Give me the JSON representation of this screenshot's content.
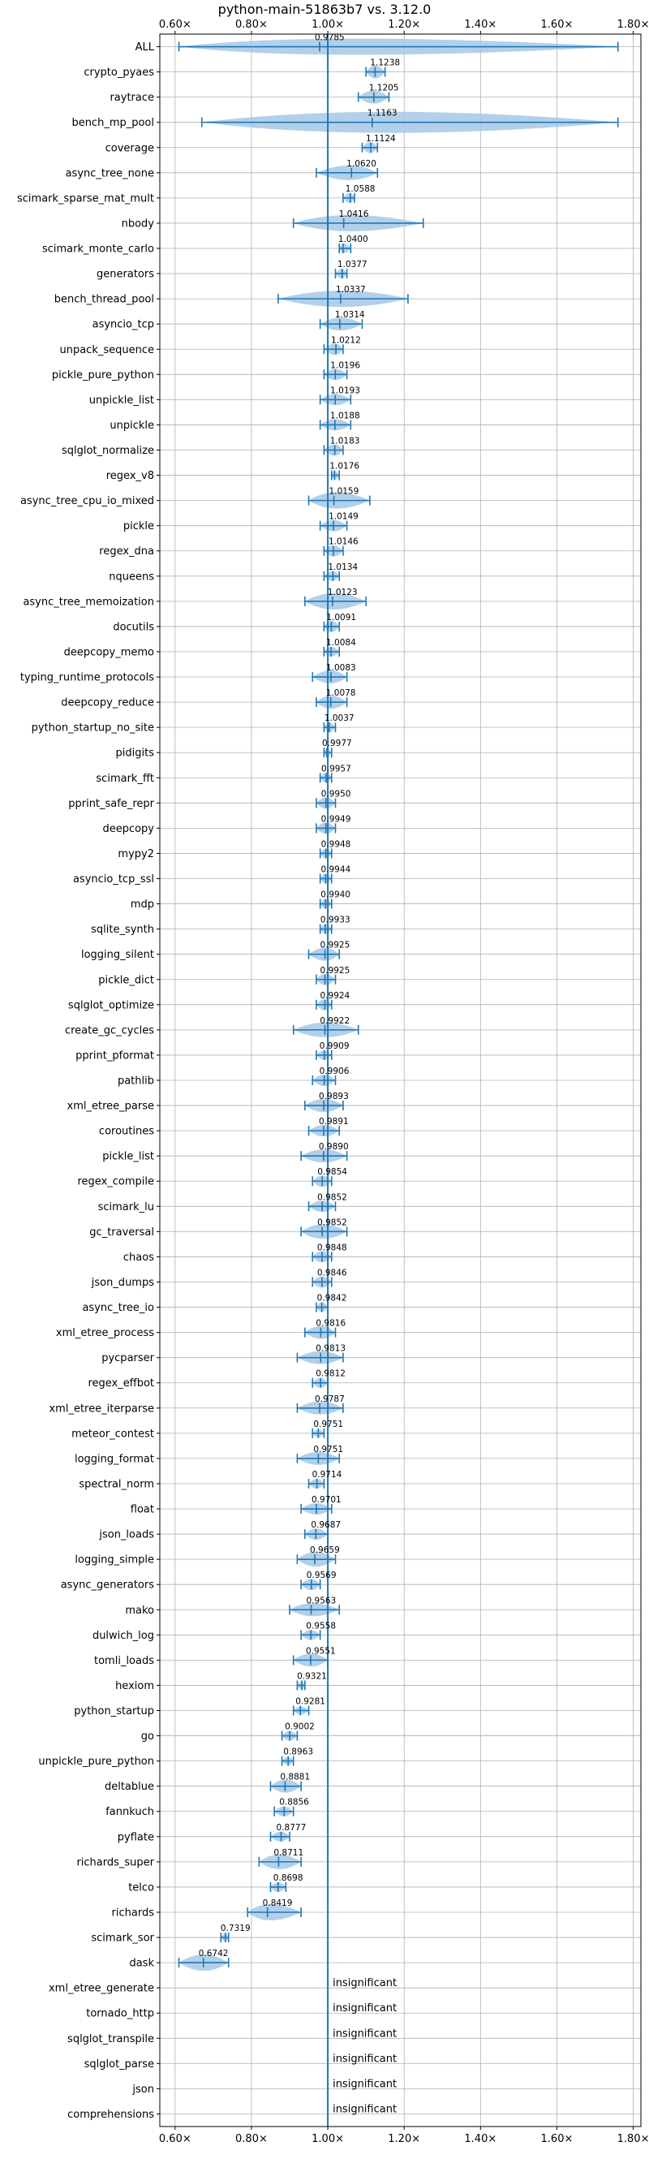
{
  "chart_data": {
    "type": "violin",
    "title": "python-main-51863b7 vs. 3.12.0",
    "xlim": [
      0.56,
      1.82
    ],
    "x_ticks": [
      0.6,
      0.8,
      1.0,
      1.2,
      1.4,
      1.6,
      1.8
    ],
    "x_tick_labels": [
      "0.60×",
      "0.80×",
      "1.00×",
      "1.20×",
      "1.40×",
      "1.60×",
      "1.80×"
    ],
    "reference_line": 1.0,
    "grid": true,
    "color": "#1f77b4",
    "violin_fill": "#a6c8e6",
    "insignificant_label": "insignificant",
    "benchmarks": [
      {
        "name": "ALL",
        "mean": 0.9785,
        "label": "0.9785",
        "min": 0.61,
        "max": 1.76,
        "width": 10
      },
      {
        "name": "crypto_pyaes",
        "mean": 1.1238,
        "label": "1.1238",
        "min": 1.1,
        "max": 1.15,
        "width": 8
      },
      {
        "name": "raytrace",
        "mean": 1.1205,
        "label": "1.1205",
        "min": 1.08,
        "max": 1.16,
        "width": 8
      },
      {
        "name": "bench_mp_pool",
        "mean": 1.1163,
        "label": "1.1163",
        "min": 0.67,
        "max": 1.76,
        "width": 13
      },
      {
        "name": "coverage",
        "mean": 1.1124,
        "label": "1.1124",
        "min": 1.09,
        "max": 1.13,
        "width": 7
      },
      {
        "name": "async_tree_none",
        "mean": 1.062,
        "label": "1.0620",
        "min": 0.97,
        "max": 1.13,
        "width": 9
      },
      {
        "name": "scimark_sparse_mat_mult",
        "mean": 1.0588,
        "label": "1.0588",
        "min": 1.04,
        "max": 1.07,
        "width": 6
      },
      {
        "name": "nbody",
        "mean": 1.0416,
        "label": "1.0416",
        "min": 0.91,
        "max": 1.25,
        "width": 10
      },
      {
        "name": "scimark_monte_carlo",
        "mean": 1.04,
        "label": "1.0400",
        "min": 1.03,
        "max": 1.06,
        "width": 6
      },
      {
        "name": "generators",
        "mean": 1.0377,
        "label": "1.0377",
        "min": 1.02,
        "max": 1.05,
        "width": 6
      },
      {
        "name": "bench_thread_pool",
        "mean": 1.0337,
        "label": "1.0337",
        "min": 0.87,
        "max": 1.21,
        "width": 10
      },
      {
        "name": "asyncio_tcp",
        "mean": 1.0314,
        "label": "1.0314",
        "min": 0.98,
        "max": 1.09,
        "width": 8
      },
      {
        "name": "unpack_sequence",
        "mean": 1.0212,
        "label": "1.0212",
        "min": 0.99,
        "max": 1.04,
        "width": 7
      },
      {
        "name": "pickle_pure_python",
        "mean": 1.0196,
        "label": "1.0196",
        "min": 0.99,
        "max": 1.05,
        "width": 7
      },
      {
        "name": "unpickle_list",
        "mean": 1.0193,
        "label": "1.0193",
        "min": 0.98,
        "max": 1.06,
        "width": 7
      },
      {
        "name": "unpickle",
        "mean": 1.0188,
        "label": "1.0188",
        "min": 0.98,
        "max": 1.06,
        "width": 7
      },
      {
        "name": "sqlglot_normalize",
        "mean": 1.0183,
        "label": "1.0183",
        "min": 0.99,
        "max": 1.04,
        "width": 7
      },
      {
        "name": "regex_v8",
        "mean": 1.0176,
        "label": "1.0176",
        "min": 1.01,
        "max": 1.03,
        "width": 5
      },
      {
        "name": "async_tree_cpu_io_mixed",
        "mean": 1.0159,
        "label": "1.0159",
        "min": 0.95,
        "max": 1.11,
        "width": 10
      },
      {
        "name": "pickle",
        "mean": 1.0149,
        "label": "1.0149",
        "min": 0.98,
        "max": 1.05,
        "width": 7
      },
      {
        "name": "regex_dna",
        "mean": 1.0146,
        "label": "1.0146",
        "min": 0.99,
        "max": 1.04,
        "width": 7
      },
      {
        "name": "nqueens",
        "mean": 1.0134,
        "label": "1.0134",
        "min": 0.99,
        "max": 1.03,
        "width": 6
      },
      {
        "name": "async_tree_memoization",
        "mean": 1.0123,
        "label": "1.0123",
        "min": 0.94,
        "max": 1.1,
        "width": 10
      },
      {
        "name": "docutils",
        "mean": 1.0091,
        "label": "1.0091",
        "min": 0.99,
        "max": 1.03,
        "width": 7
      },
      {
        "name": "deepcopy_memo",
        "mean": 1.0084,
        "label": "1.0084",
        "min": 0.99,
        "max": 1.03,
        "width": 6
      },
      {
        "name": "typing_runtime_protocols",
        "mean": 1.0083,
        "label": "1.0083",
        "min": 0.96,
        "max": 1.05,
        "width": 8
      },
      {
        "name": "deepcopy_reduce",
        "mean": 1.0078,
        "label": "1.0078",
        "min": 0.97,
        "max": 1.05,
        "width": 8
      },
      {
        "name": "python_startup_no_site",
        "mean": 1.0037,
        "label": "1.0037",
        "min": 0.99,
        "max": 1.02,
        "width": 6
      },
      {
        "name": "pidigits",
        "mean": 0.9977,
        "label": "0.9977",
        "min": 0.99,
        "max": 1.01,
        "width": 5
      },
      {
        "name": "scimark_fft",
        "mean": 0.9957,
        "label": "0.9957",
        "min": 0.98,
        "max": 1.01,
        "width": 6
      },
      {
        "name": "pprint_safe_repr",
        "mean": 0.995,
        "label": "0.9950",
        "min": 0.97,
        "max": 1.02,
        "width": 7
      },
      {
        "name": "deepcopy",
        "mean": 0.9949,
        "label": "0.9949",
        "min": 0.97,
        "max": 1.02,
        "width": 7
      },
      {
        "name": "mypy2",
        "mean": 0.9948,
        "label": "0.9948",
        "min": 0.98,
        "max": 1.01,
        "width": 6
      },
      {
        "name": "asyncio_tcp_ssl",
        "mean": 0.9944,
        "label": "0.9944",
        "min": 0.98,
        "max": 1.01,
        "width": 6
      },
      {
        "name": "mdp",
        "mean": 0.994,
        "label": "0.9940",
        "min": 0.98,
        "max": 1.01,
        "width": 6
      },
      {
        "name": "sqlite_synth",
        "mean": 0.9933,
        "label": "0.9933",
        "min": 0.98,
        "max": 1.01,
        "width": 6
      },
      {
        "name": "logging_silent",
        "mean": 0.9925,
        "label": "0.9925",
        "min": 0.95,
        "max": 1.03,
        "width": 8
      },
      {
        "name": "pickle_dict",
        "mean": 0.9925,
        "label": "0.9925",
        "min": 0.97,
        "max": 1.02,
        "width": 7
      },
      {
        "name": "sqlglot_optimize",
        "mean": 0.9924,
        "label": "0.9924",
        "min": 0.97,
        "max": 1.01,
        "width": 7
      },
      {
        "name": "create_gc_cycles",
        "mean": 0.9922,
        "label": "0.9922",
        "min": 0.91,
        "max": 1.08,
        "width": 9
      },
      {
        "name": "pprint_pformat",
        "mean": 0.9909,
        "label": "0.9909",
        "min": 0.97,
        "max": 1.01,
        "width": 6
      },
      {
        "name": "pathlib",
        "mean": 0.9906,
        "label": "0.9906",
        "min": 0.96,
        "max": 1.02,
        "width": 7
      },
      {
        "name": "xml_etree_parse",
        "mean": 0.9893,
        "label": "0.9893",
        "min": 0.94,
        "max": 1.04,
        "width": 8
      },
      {
        "name": "coroutines",
        "mean": 0.9891,
        "label": "0.9891",
        "min": 0.95,
        "max": 1.03,
        "width": 7
      },
      {
        "name": "pickle_list",
        "mean": 0.989,
        "label": "0.9890",
        "min": 0.93,
        "max": 1.05,
        "width": 8
      },
      {
        "name": "regex_compile",
        "mean": 0.9854,
        "label": "0.9854",
        "min": 0.96,
        "max": 1.01,
        "width": 7
      },
      {
        "name": "scimark_lu",
        "mean": 0.9852,
        "label": "0.9852",
        "min": 0.95,
        "max": 1.02,
        "width": 7
      },
      {
        "name": "gc_traversal",
        "mean": 0.9852,
        "label": "0.9852",
        "min": 0.93,
        "max": 1.05,
        "width": 9
      },
      {
        "name": "chaos",
        "mean": 0.9848,
        "label": "0.9848",
        "min": 0.96,
        "max": 1.01,
        "width": 7
      },
      {
        "name": "json_dumps",
        "mean": 0.9846,
        "label": "0.9846",
        "min": 0.96,
        "max": 1.01,
        "width": 7
      },
      {
        "name": "async_tree_io",
        "mean": 0.9842,
        "label": "0.9842",
        "min": 0.97,
        "max": 1.0,
        "width": 6
      },
      {
        "name": "xml_etree_process",
        "mean": 0.9816,
        "label": "0.9816",
        "min": 0.94,
        "max": 1.02,
        "width": 8
      },
      {
        "name": "pycparser",
        "mean": 0.9813,
        "label": "0.9813",
        "min": 0.92,
        "max": 1.04,
        "width": 8
      },
      {
        "name": "regex_effbot",
        "mean": 0.9812,
        "label": "0.9812",
        "min": 0.96,
        "max": 1.0,
        "width": 6
      },
      {
        "name": "xml_etree_iterparse",
        "mean": 0.9787,
        "label": "0.9787",
        "min": 0.92,
        "max": 1.04,
        "width": 8
      },
      {
        "name": "meteor_contest",
        "mean": 0.9751,
        "label": "0.9751",
        "min": 0.96,
        "max": 0.99,
        "width": 5
      },
      {
        "name": "logging_format",
        "mean": 0.9751,
        "label": "0.9751",
        "min": 0.92,
        "max": 1.03,
        "width": 8
      },
      {
        "name": "spectral_norm",
        "mean": 0.9714,
        "label": "0.9714",
        "min": 0.95,
        "max": 0.99,
        "width": 6
      },
      {
        "name": "float",
        "mean": 0.9701,
        "label": "0.9701",
        "min": 0.93,
        "max": 1.01,
        "width": 7
      },
      {
        "name": "json_loads",
        "mean": 0.9687,
        "label": "0.9687",
        "min": 0.94,
        "max": 1.0,
        "width": 7
      },
      {
        "name": "logging_simple",
        "mean": 0.9659,
        "label": "0.9659",
        "min": 0.92,
        "max": 1.02,
        "width": 9
      },
      {
        "name": "async_generators",
        "mean": 0.9569,
        "label": "0.9569",
        "min": 0.93,
        "max": 0.98,
        "width": 7
      },
      {
        "name": "mako",
        "mean": 0.9563,
        "label": "0.9563",
        "min": 0.9,
        "max": 1.03,
        "width": 8
      },
      {
        "name": "dulwich_log",
        "mean": 0.9558,
        "label": "0.9558",
        "min": 0.93,
        "max": 0.98,
        "width": 6
      },
      {
        "name": "tomli_loads",
        "mean": 0.9551,
        "label": "0.9551",
        "min": 0.91,
        "max": 1.0,
        "width": 8
      },
      {
        "name": "hexiom",
        "mean": 0.9321,
        "label": "0.9321",
        "min": 0.92,
        "max": 0.94,
        "width": 5
      },
      {
        "name": "python_startup",
        "mean": 0.9281,
        "label": "0.9281",
        "min": 0.91,
        "max": 0.95,
        "width": 5
      },
      {
        "name": "go",
        "mean": 0.9002,
        "label": "0.9002",
        "min": 0.88,
        "max": 0.92,
        "width": 6
      },
      {
        "name": "unpickle_pure_python",
        "mean": 0.8963,
        "label": "0.8963",
        "min": 0.88,
        "max": 0.91,
        "width": 5
      },
      {
        "name": "deltablue",
        "mean": 0.8881,
        "label": "0.8881",
        "min": 0.85,
        "max": 0.93,
        "width": 8
      },
      {
        "name": "fannkuch",
        "mean": 0.8856,
        "label": "0.8856",
        "min": 0.86,
        "max": 0.91,
        "width": 6
      },
      {
        "name": "pyflate",
        "mean": 0.8777,
        "label": "0.8777",
        "min": 0.85,
        "max": 0.9,
        "width": 6
      },
      {
        "name": "richards_super",
        "mean": 0.8711,
        "label": "0.8711",
        "min": 0.82,
        "max": 0.93,
        "width": 9
      },
      {
        "name": "telco",
        "mean": 0.8698,
        "label": "0.8698",
        "min": 0.85,
        "max": 0.89,
        "width": 6
      },
      {
        "name": "richards",
        "mean": 0.8419,
        "label": "0.8419",
        "min": 0.79,
        "max": 0.93,
        "width": 10
      },
      {
        "name": "scimark_sor",
        "mean": 0.7319,
        "label": "0.7319",
        "min": 0.72,
        "max": 0.74,
        "width": 5
      },
      {
        "name": "dask",
        "mean": 0.6742,
        "label": "0.6742",
        "min": 0.61,
        "max": 0.74,
        "width": 10
      },
      {
        "name": "xml_etree_generate",
        "mean": null,
        "label": "insignificant"
      },
      {
        "name": "tornado_http",
        "mean": null,
        "label": "insignificant"
      },
      {
        "name": "sqlglot_transpile",
        "mean": null,
        "label": "insignificant"
      },
      {
        "name": "sqlglot_parse",
        "mean": null,
        "label": "insignificant"
      },
      {
        "name": "json",
        "mean": null,
        "label": "insignificant"
      },
      {
        "name": "comprehensions",
        "mean": null,
        "label": "insignificant"
      }
    ]
  }
}
